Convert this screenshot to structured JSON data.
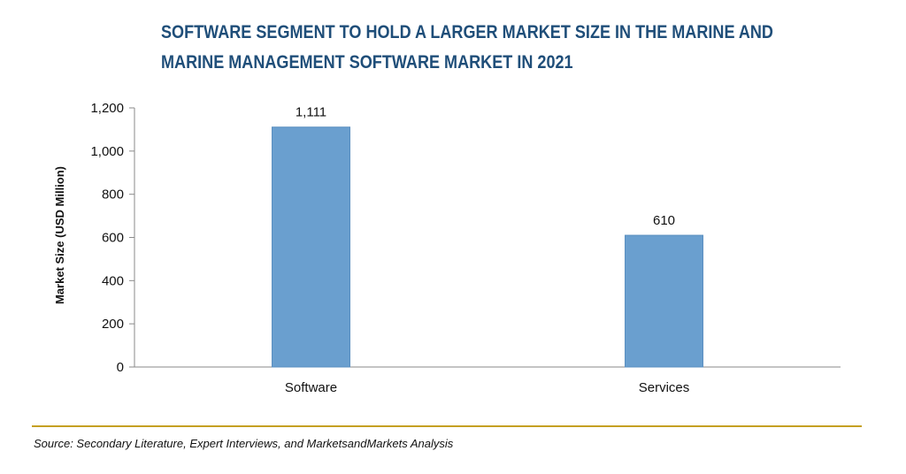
{
  "title_lines": [
    "SOFTWARE SEGMENT TO HOLD A LARGER MARKET SIZE IN THE MARINE AND",
    "MARINE MANAGEMENT SOFTWARE MARKET IN 2021"
  ],
  "source": "Source: Secondary Literature, Expert Interviews, and MarketsandMarkets Analysis",
  "colors": {
    "bar": "#6a9fcf",
    "bar_edge": "#5b8fc0",
    "rule": "#c5a023",
    "title": "#1f4e79"
  },
  "chart_data": {
    "type": "bar",
    "title": "SOFTWARE SEGMENT TO HOLD A LARGER MARKET SIZE IN THE MARINE AND MARINE MANAGEMENT SOFTWARE MARKET IN 2021",
    "xlabel": "",
    "ylabel": "Market Size (USD Million)",
    "categories": [
      "Software",
      "Services"
    ],
    "values": [
      1111,
      610
    ],
    "data_labels": [
      "1,111",
      "610"
    ],
    "ylim": [
      0,
      1200
    ],
    "yticks": [
      0,
      200,
      400,
      600,
      800,
      1000,
      1200
    ],
    "ytick_labels": [
      "0",
      "200",
      "400",
      "600",
      "800",
      "1,000",
      "1,200"
    ],
    "grid": false,
    "legend": "none"
  }
}
